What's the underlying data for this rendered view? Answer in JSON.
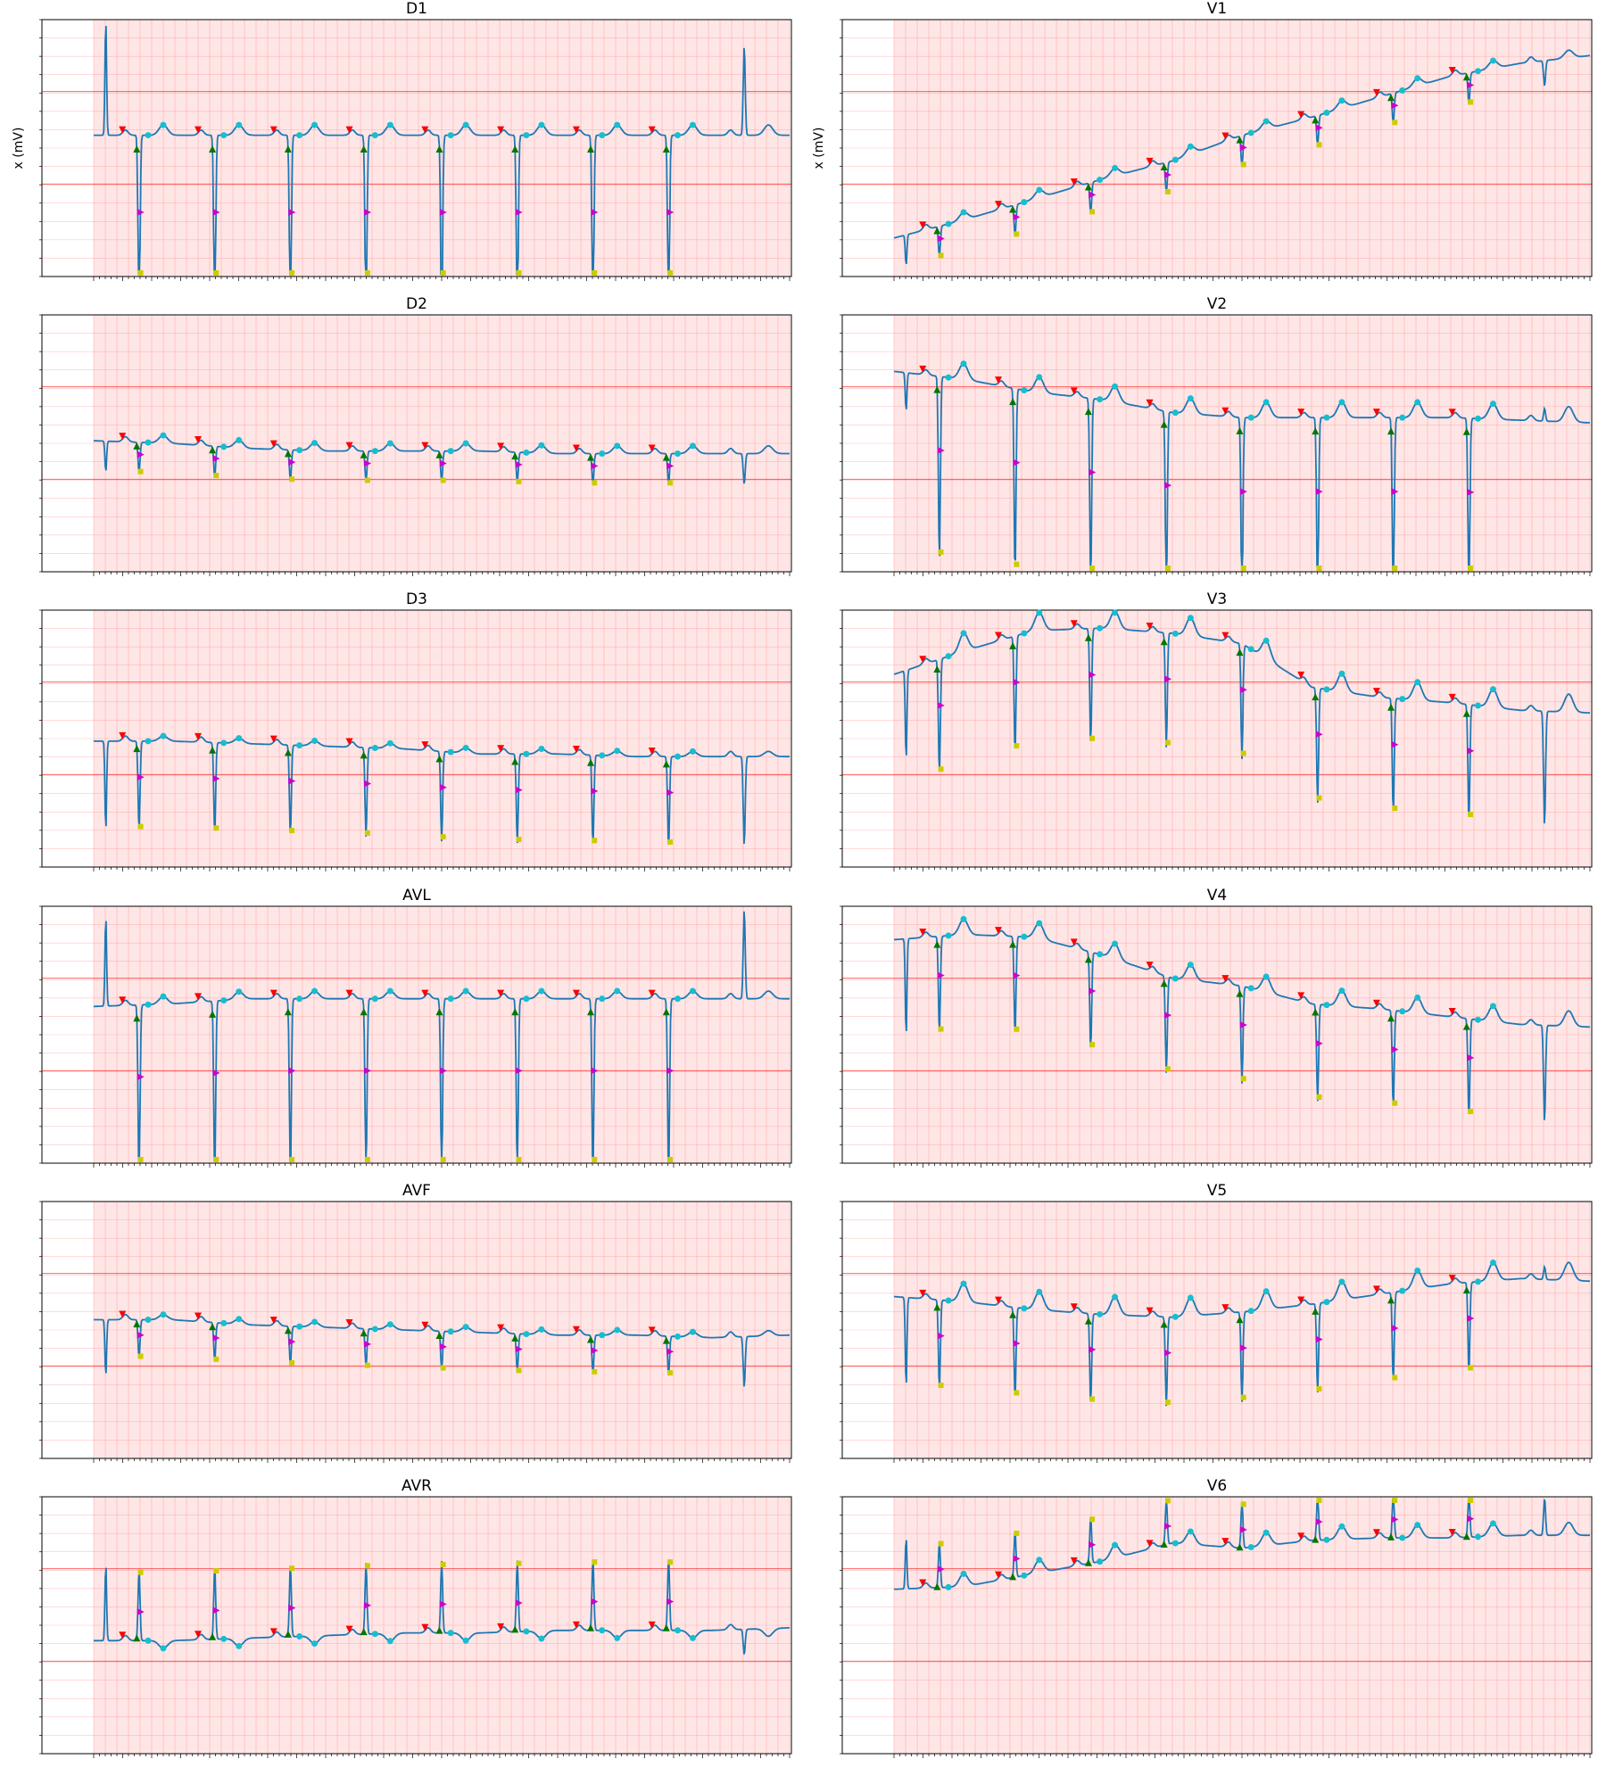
{
  "chart_data": {
    "type": "line",
    "ylabel": "x (mV)",
    "grid": true,
    "background": "#ffe6e6",
    "colors": {
      "signal": "#1f77b4",
      "grid_major": "#ff0000",
      "grid_minor": "#ff7f7f",
      "p_wave": "#ff0000",
      "qrs_onset": "#007700",
      "r_peak": "#cc0000",
      "q_point": "#cc00cc",
      "s_point": "#cccc00",
      "t_wave": "#17becf"
    },
    "beats_x": [
      0.6,
      1.6,
      2.6,
      3.6,
      4.6,
      5.6,
      6.6,
      7.6,
      8.6
    ],
    "leads": [
      {
        "name": "D1",
        "amp": -0.75,
        "baseline": [
          0.45,
          0.45,
          0.45,
          0.45,
          0.45,
          0.45,
          0.45,
          0.45,
          0.45,
          0.45
        ],
        "t_amp": 0.04,
        "first_beat": 0.45,
        "last_beat": 0.35
      },
      {
        "name": "V1",
        "amp": -0.12,
        "baseline": [
          0.85,
          0.78,
          0.7,
          0.62,
          0.55,
          0.45,
          0.38,
          0.3,
          0.22,
          0.17,
          0.14
        ],
        "t_amp": 0.03,
        "first_beat": -0.12,
        "last_beat": -0.1
      },
      {
        "name": "D2",
        "amp": -0.12,
        "baseline": [
          0.49,
          0.5,
          0.52,
          0.53,
          0.53,
          0.53,
          0.54,
          0.54,
          0.54,
          0.54
        ],
        "t_amp": 0.03,
        "first_beat": -0.12,
        "last_beat": -0.12
      },
      {
        "name": "V2",
        "amp": -0.72,
        "baseline": [
          0.22,
          0.25,
          0.3,
          0.33,
          0.38,
          0.4,
          0.4,
          0.4,
          0.4,
          0.41,
          0.42
        ],
        "t_amp": 0.06,
        "first_beat": -0.15,
        "last_beat": 0.05
      },
      {
        "name": "D3",
        "amp": -0.35,
        "baseline": [
          0.51,
          0.51,
          0.52,
          0.53,
          0.54,
          0.56,
          0.56,
          0.57,
          0.57,
          0.57
        ],
        "t_amp": 0.02,
        "first_beat": -0.35,
        "last_beat": -0.35
      },
      {
        "name": "V3",
        "amp": -0.45,
        "baseline": [
          0.25,
          0.16,
          0.08,
          0.07,
          0.09,
          0.13,
          0.3,
          0.34,
          0.36,
          0.39,
          0.4
        ],
        "t_amp": 0.07,
        "first_beat": -0.35,
        "last_beat": -0.45
      },
      {
        "name": "AVL",
        "amp": -0.7,
        "baseline": [
          0.39,
          0.38,
          0.36,
          0.36,
          0.36,
          0.36,
          0.36,
          0.36,
          0.36,
          0.36
        ],
        "t_amp": 0.03,
        "first_beat": 0.35,
        "last_beat": 0.35
      },
      {
        "name": "V4",
        "amp": -0.38,
        "baseline": [
          0.13,
          0.11,
          0.12,
          0.19,
          0.28,
          0.31,
          0.38,
          0.4,
          0.43,
          0.46,
          0.47
        ],
        "t_amp": 0.06,
        "first_beat": -0.38,
        "last_beat": -0.38
      },
      {
        "name": "AVF",
        "amp": -0.15,
        "baseline": [
          0.46,
          0.46,
          0.48,
          0.49,
          0.5,
          0.51,
          0.52,
          0.52,
          0.53,
          0.52
        ],
        "t_amp": 0.02,
        "first_beat": -0.22,
        "last_beat": -0.2
      },
      {
        "name": "V5",
        "amp": -0.35,
        "baseline": [
          0.37,
          0.39,
          0.42,
          0.44,
          0.45,
          0.43,
          0.4,
          0.36,
          0.32,
          0.3,
          0.31
        ],
        "t_amp": 0.07,
        "first_beat": -0.35,
        "last_beat": 0.05
      },
      {
        "name": "AVR",
        "amp": 0.28,
        "baseline": [
          0.56,
          0.56,
          0.55,
          0.54,
          0.53,
          0.53,
          0.52,
          0.52,
          0.52,
          0.51
        ],
        "t_amp": -0.03,
        "first_beat": 0.3,
        "last_beat": -0.1
      },
      {
        "name": "V6",
        "amp": 0.18,
        "baseline": [
          0.36,
          0.35,
          0.3,
          0.25,
          0.18,
          0.2,
          0.17,
          0.16,
          0.16,
          0.15,
          0.15
        ],
        "t_amp": 0.05,
        "first_beat": 0.2,
        "last_beat": 0.15
      }
    ]
  }
}
